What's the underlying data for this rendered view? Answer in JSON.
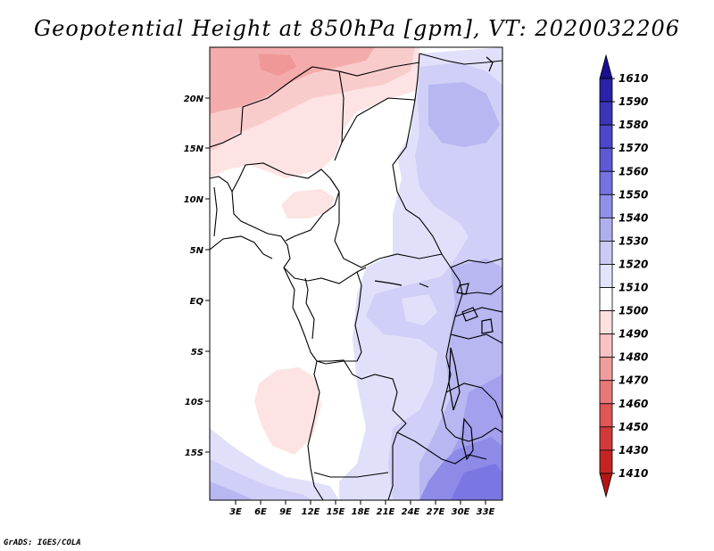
{
  "title": "Geopotential Height at 850hPa [gpm], VT: 2020032206",
  "credit": "GrADS: IGES/COLA",
  "lat_labels": [
    "20N",
    "15N",
    "10N",
    "5N",
    "EQ",
    "5S",
    "10S",
    "15S"
  ],
  "lon_labels": [
    "3E",
    "6E",
    "9E",
    "12E",
    "15E",
    "18E",
    "21E",
    "24E",
    "27E",
    "30E",
    "33E"
  ],
  "colorbar": {
    "levels": [
      "1610",
      "1590",
      "1580",
      "1570",
      "1560",
      "1550",
      "1540",
      "1530",
      "1520",
      "1510",
      "1500",
      "1490",
      "1480",
      "1470",
      "1460",
      "1450",
      "1430",
      "1410"
    ],
    "colors": [
      "#1a0f8f",
      "#2a22a8",
      "#3b35b8",
      "#4c47c8",
      "#5e5ad6",
      "#7573e0",
      "#908fe9",
      "#b0afee",
      "#cacaf5",
      "#e3e3fb",
      "#ffffff",
      "#fde0e0",
      "#f9c2c2",
      "#f29d9d",
      "#e87878",
      "#de5656",
      "#d23a3a",
      "#c42424",
      "#b31616"
    ]
  },
  "map_regions": [
    {
      "name": "sahara-high",
      "fill": "#f4abab"
    },
    {
      "name": "sahara-mid",
      "fill": "#f9cccc"
    },
    {
      "name": "west-light",
      "fill": "#fde3e3"
    },
    {
      "name": "congo-blue",
      "fill": "#e0e0fb"
    },
    {
      "name": "east-mid",
      "fill": "#cfcff7"
    },
    {
      "name": "east-strong",
      "fill": "#b8b7f1"
    },
    {
      "name": "southeast-deep",
      "fill": "#8d8ae8"
    }
  ]
}
